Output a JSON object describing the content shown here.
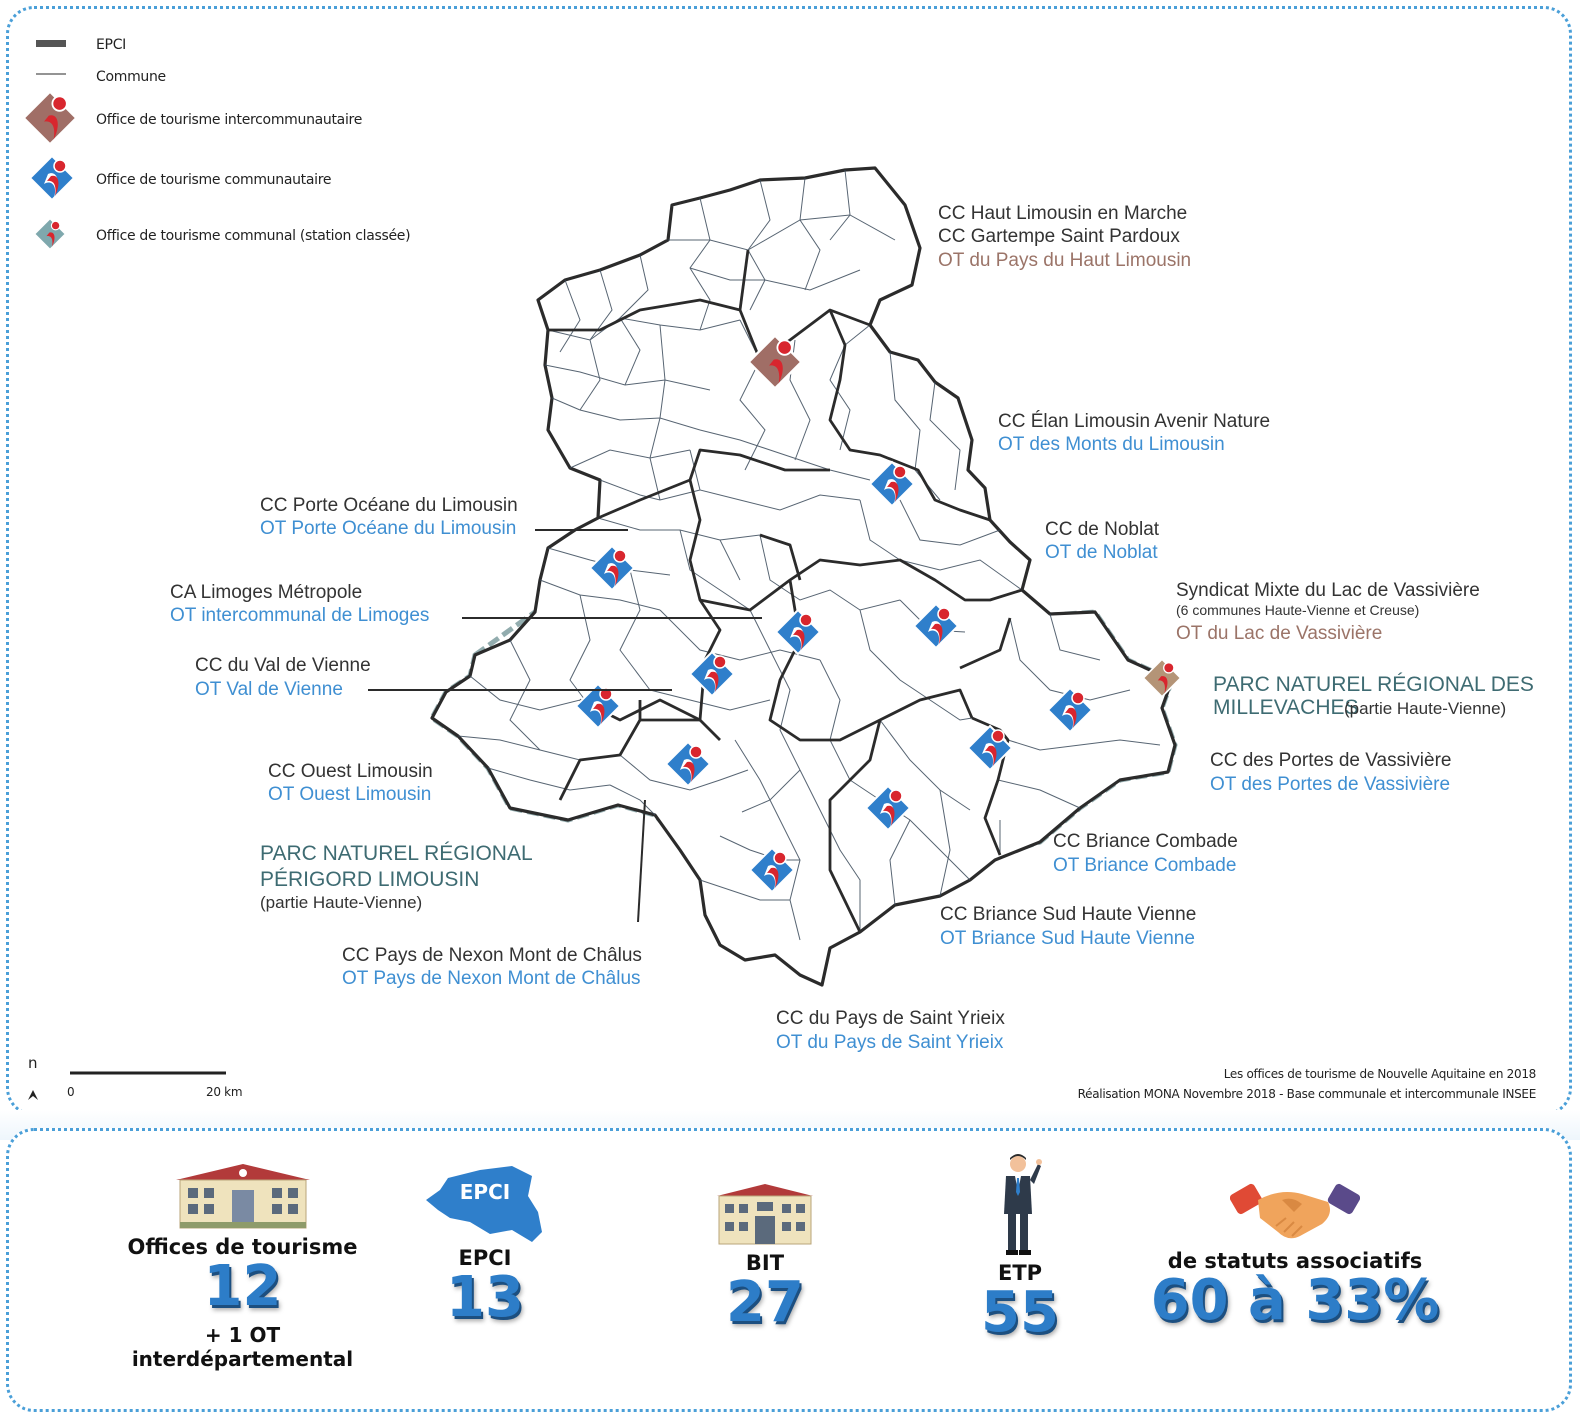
{
  "legend": {
    "epci": "EPCI",
    "commune": "Commune",
    "ot_intercommunautaire": "Office de tourisme intercommunautaire",
    "ot_communautaire": "Office de tourisme communautaire",
    "ot_communal": "Office de tourisme communal (station classée)"
  },
  "labels": {
    "haut_limousin_cc1": "CC Haut Limousin en Marche",
    "haut_limousin_cc2": "CC Gartempe Saint Pardoux",
    "haut_limousin_ot": "OT du Pays du Haut Limousin",
    "elan_cc": "CC Élan Limousin Avenir Nature",
    "elan_ot": "OT des Monts du Limousin",
    "porte_oceane_cc": "CC Porte Océane du Limousin",
    "porte_oceane_ot": "OT Porte Océane du Limousin",
    "noblat_cc": "CC de Noblat",
    "noblat_ot": "OT de Noblat",
    "limoges_ca": "CA Limoges Métropole",
    "limoges_ot": "OT intercommunal de Limoges",
    "vassiviere_sm": "Syndicat Mixte du Lac de Vassivière",
    "vassiviere_note": "(6 communes Haute-Vienne et Creuse)",
    "vassiviere_ot": "OT du Lac de Vassivière",
    "val_vienne_cc": "CC du Val de Vienne",
    "val_vienne_ot": "OT Val de Vienne",
    "pnr_millevaches_1": "PARC NATUREL RÉGIONAL DES",
    "pnr_millevaches_2": "MILLEVACHES",
    "pnr_millevaches_note": "(partie Haute-Vienne)",
    "portes_vassiviere_cc": "CC des Portes de Vassivière",
    "portes_vassiviere_ot": "OT des Portes de Vassivière",
    "ouest_cc": "CC Ouest Limousin",
    "ouest_ot": "OT Ouest Limousin",
    "pnr_perigord_1": "PARC NATUREL RÉGIONAL",
    "pnr_perigord_2": "PÉRIGORD LIMOUSIN",
    "pnr_perigord_note": "(partie Haute-Vienne)",
    "briance_combade_cc": "CC Briance Combade",
    "briance_combade_ot": "OT Briance Combade",
    "briance_sud_cc": "CC Briance Sud Haute Vienne",
    "briance_sud_ot": "OT Briance Sud Haute Vienne",
    "nexon_cc": "CC Pays de Nexon Mont de Châlus",
    "nexon_ot": "OT Pays de Nexon Mont de Châlus",
    "saint_yrieix_cc": "CC du Pays de Saint Yrieix",
    "saint_yrieix_ot": "OT du Pays de Saint Yrieix"
  },
  "scale": {
    "north": "n",
    "start": "0",
    "end": "20 km"
  },
  "credits": {
    "line1": "Les offices de tourisme de Nouvelle Aquitaine en 2018",
    "line2": "Réalisation MONA Novembre 2018 - Base communale et intercommunale INSEE"
  },
  "colors": {
    "ot_blue": "#2f7fcb",
    "ot_red": "#d8262e",
    "ot_intercom": "#a06e66",
    "ot_lac": "#b49477",
    "pnr_border": "#7f9ea0",
    "label_blue": "#3f8fd2"
  },
  "stats": {
    "offices": {
      "label": "Offices de tourisme",
      "value": "12",
      "sub": "+ 1 OT interdépartemental",
      "icon": "building-icon"
    },
    "epci": {
      "label": "EPCI",
      "value": "13",
      "badge": "EPCI",
      "icon": "map-shape-icon"
    },
    "bit": {
      "label": "BIT",
      "value": "27",
      "icon": "small-building-icon"
    },
    "etp": {
      "label": "ETP",
      "value": "55",
      "icon": "businessman-icon"
    },
    "assoc": {
      "label": "de statuts associatifs",
      "value": "60 à 33%",
      "icon": "handshake-icon"
    }
  }
}
